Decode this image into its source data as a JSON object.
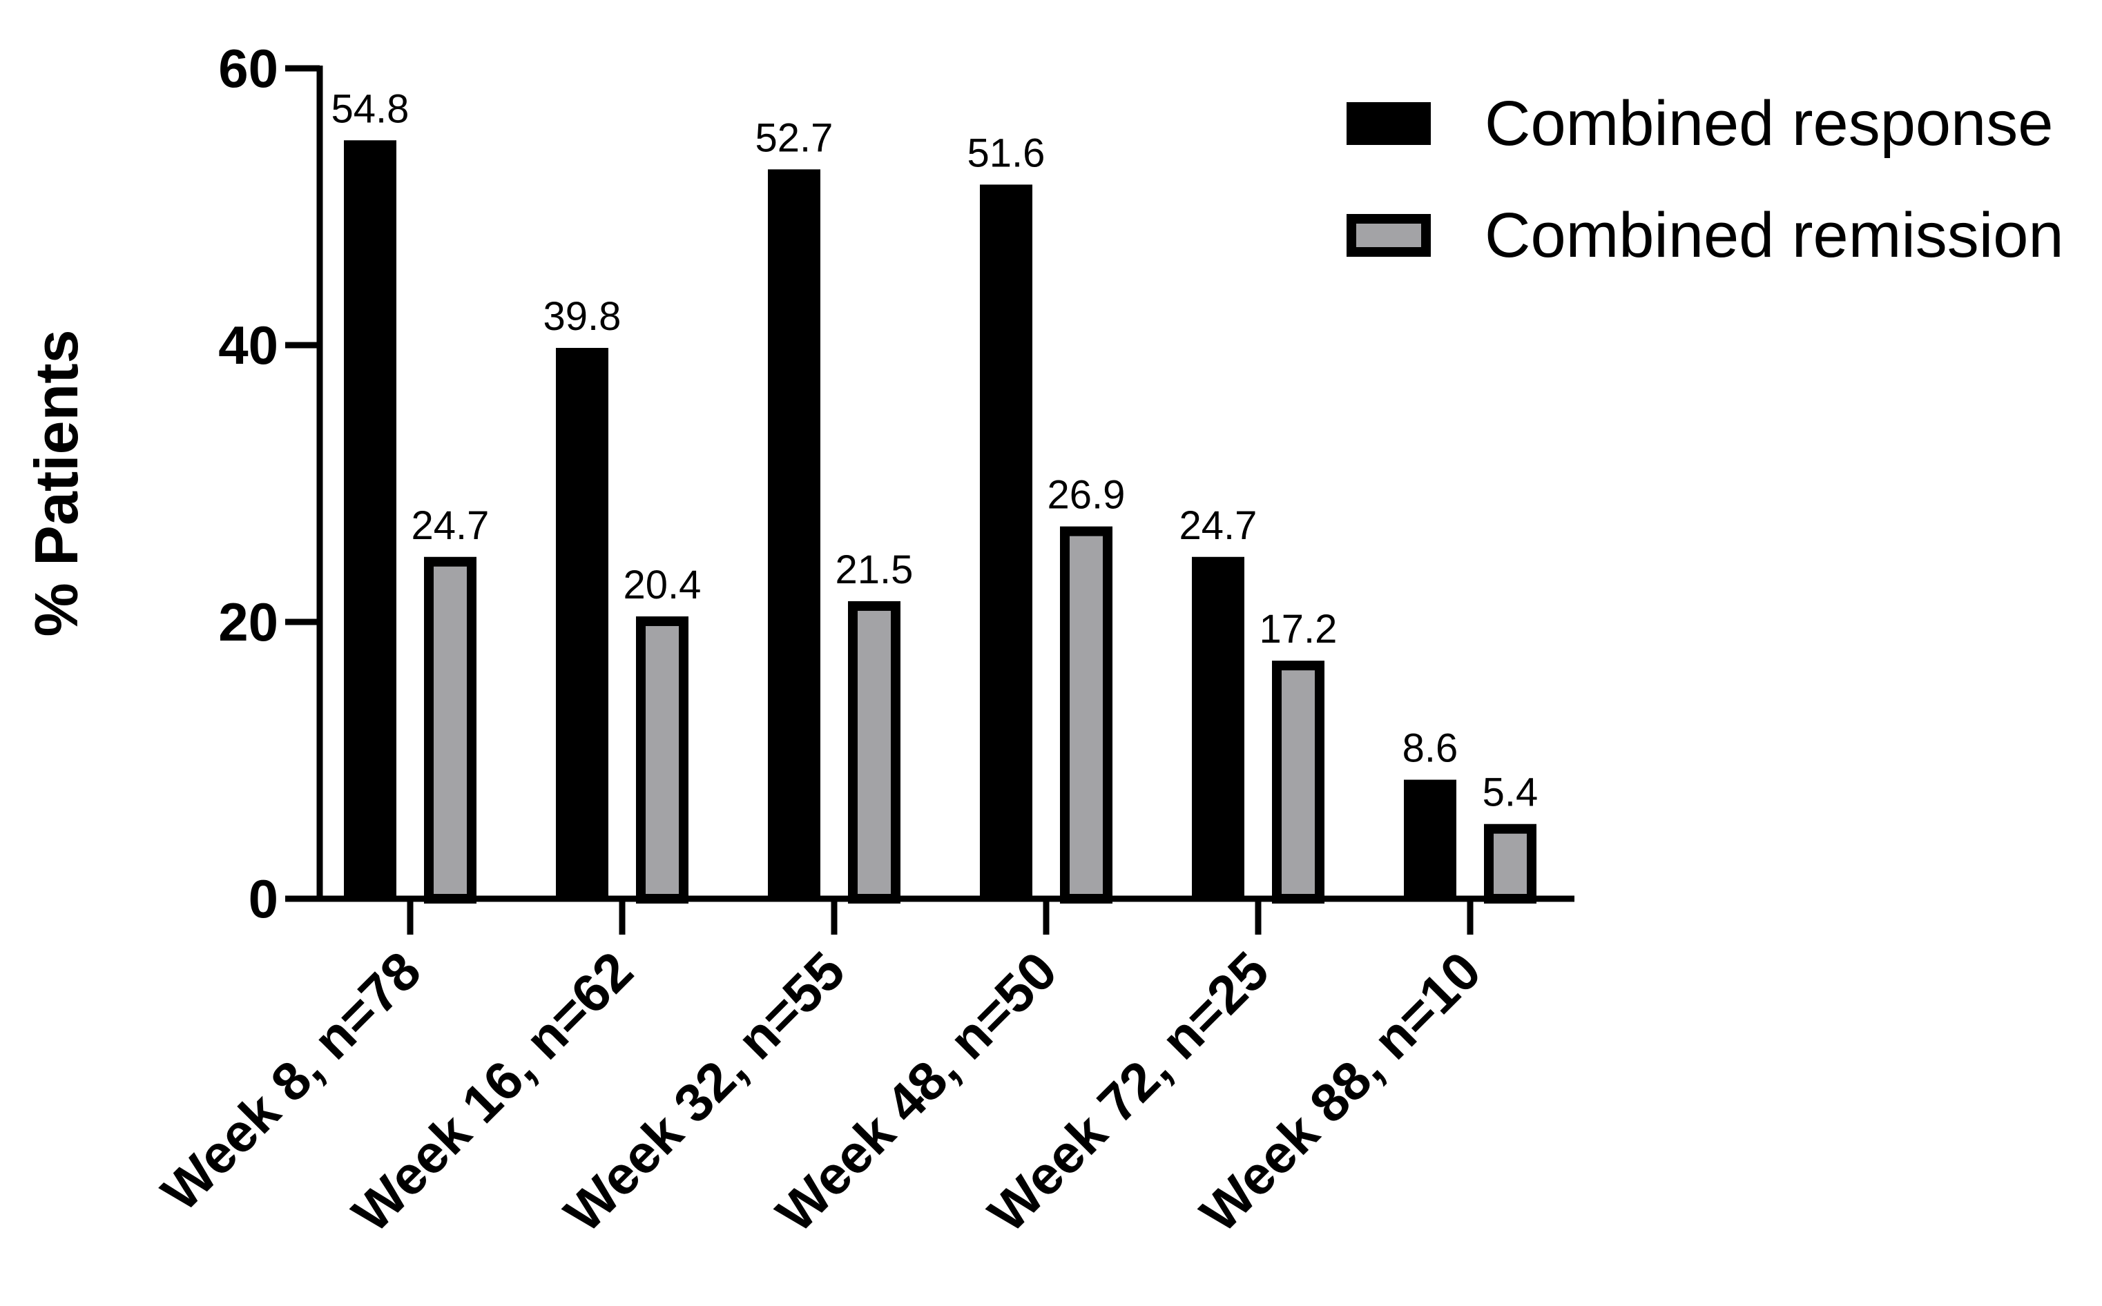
{
  "chart_data": {
    "type": "bar",
    "title": "",
    "xlabel": "",
    "ylabel": "% Patients",
    "ylim": [
      0,
      60
    ],
    "yticks": [
      0,
      20,
      40,
      60
    ],
    "categories": [
      "Week 8, n=78",
      "Week 16, n=62",
      "Week 32, n=55",
      "Week 48, n=50",
      "Week 72, n=25",
      "Week 88, n=10"
    ],
    "series": [
      {
        "name": "Combined response",
        "color": "#000000",
        "values": [
          54.8,
          39.8,
          52.7,
          51.6,
          24.7,
          8.6
        ],
        "labels": [
          "54.8",
          "39.8",
          "52.7",
          "51.6",
          "24.7",
          "8.6"
        ]
      },
      {
        "name": "Combined remission",
        "color": "#a3a3a6",
        "values": [
          24.7,
          20.4,
          21.5,
          26.9,
          17.2,
          5.4
        ],
        "labels": [
          "24.7",
          "20.4",
          "21.5",
          "26.9",
          "17.2",
          "5.4"
        ]
      }
    ],
    "legend_position": "top-right",
    "grid": false
  }
}
